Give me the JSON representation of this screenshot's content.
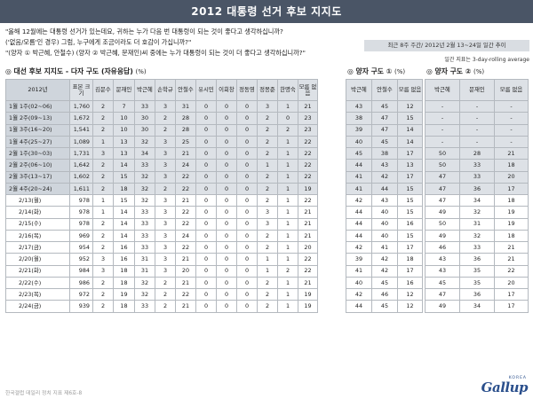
{
  "title": "2012 대통령 선거 후보 지지도",
  "questions": [
    "\"올해 12월에는 대통령 선거가 있는데요, 귀하는 누가 다음 번 대통령이 되는 것이 좋다고 생각하십니까?",
    "('없음/모름'인 경우) 그럼, 누구에게 조금이라도 더 호감이 가십니까?\"",
    "\"(양자 ① 박근혜, 안철수) (양자 ② 박근혜, 문재인)씨 중에는 누가 대통령이 되는 것이 더 좋다고 생각하십니까?\""
  ],
  "trend_label": "최근 8주 주간/ 2012년 2월 13~24일 일간 추이",
  "trend_note": "일간 지표는 3-day-rolling average",
  "sections": {
    "main": {
      "title": "◎ 대선 후보 지지도 - 다자 구도 (자유응답)",
      "unit": "(%)"
    },
    "two1": {
      "title": "◎ 양자 구도 ①",
      "unit": "(%)"
    },
    "two2": {
      "title": "◎ 양자 구도 ②",
      "unit": "(%)"
    }
  },
  "main_table": {
    "headers": [
      "2012년",
      "표본 크기",
      "김문수",
      "문재인",
      "박근혜",
      "손학규",
      "안철수",
      "유시민",
      "이회창",
      "정동영",
      "정몽준",
      "한명숙",
      "모름 없음"
    ],
    "rows": [
      {
        "label": "1월 1주(02~06)",
        "type": "week",
        "values": [
          "1,760",
          "2",
          "7",
          "33",
          "3",
          "31",
          "0",
          "0",
          "0",
          "3",
          "1",
          "21"
        ]
      },
      {
        "label": "1월 2주(09~13)",
        "type": "week",
        "values": [
          "1,672",
          "2",
          "10",
          "30",
          "2",
          "28",
          "0",
          "0",
          "0",
          "2",
          "0",
          "23"
        ]
      },
      {
        "label": "1월 3주(16~20)",
        "type": "week",
        "values": [
          "1,541",
          "2",
          "10",
          "30",
          "2",
          "28",
          "0",
          "0",
          "0",
          "2",
          "2",
          "23"
        ]
      },
      {
        "label": "1월 4주(25~27)",
        "type": "week",
        "values": [
          "1,089",
          "1",
          "13",
          "32",
          "3",
          "25",
          "0",
          "0",
          "0",
          "2",
          "1",
          "22"
        ]
      },
      {
        "label": "2월 1주(30~03)",
        "type": "week",
        "values": [
          "1,731",
          "3",
          "13",
          "34",
          "3",
          "21",
          "0",
          "0",
          "0",
          "2",
          "1",
          "22"
        ]
      },
      {
        "label": "2월 2주(06~10)",
        "type": "week",
        "values": [
          "1,642",
          "2",
          "14",
          "33",
          "3",
          "24",
          "0",
          "0",
          "0",
          "1",
          "1",
          "22"
        ]
      },
      {
        "label": "2월 3주(13~17)",
        "type": "week",
        "values": [
          "1,602",
          "2",
          "15",
          "32",
          "3",
          "22",
          "0",
          "0",
          "0",
          "2",
          "1",
          "22"
        ]
      },
      {
        "label": "2월 4주(20~24)",
        "type": "week",
        "values": [
          "1,611",
          "2",
          "18",
          "32",
          "2",
          "22",
          "0",
          "0",
          "0",
          "2",
          "1",
          "19"
        ]
      },
      {
        "label": "2/13(월)",
        "type": "day",
        "values": [
          "978",
          "1",
          "15",
          "32",
          "3",
          "21",
          "0",
          "0",
          "0",
          "2",
          "1",
          "22"
        ]
      },
      {
        "label": "2/14(화)",
        "type": "day",
        "values": [
          "978",
          "1",
          "14",
          "33",
          "3",
          "22",
          "0",
          "0",
          "0",
          "3",
          "1",
          "21"
        ]
      },
      {
        "label": "2/15(수)",
        "type": "day",
        "values": [
          "978",
          "2",
          "14",
          "33",
          "3",
          "22",
          "0",
          "0",
          "0",
          "3",
          "1",
          "21"
        ]
      },
      {
        "label": "2/16(목)",
        "type": "day",
        "values": [
          "969",
          "2",
          "14",
          "33",
          "3",
          "24",
          "0",
          "0",
          "0",
          "2",
          "1",
          "21"
        ]
      },
      {
        "label": "2/17(금)",
        "type": "day",
        "values": [
          "954",
          "2",
          "16",
          "33",
          "3",
          "22",
          "0",
          "0",
          "0",
          "2",
          "1",
          "20"
        ]
      },
      {
        "label": "2/20(월)",
        "type": "day",
        "values": [
          "952",
          "3",
          "16",
          "31",
          "3",
          "21",
          "0",
          "0",
          "0",
          "1",
          "1",
          "22"
        ]
      },
      {
        "label": "2/21(화)",
        "type": "day",
        "values": [
          "984",
          "3",
          "18",
          "31",
          "3",
          "20",
          "0",
          "0",
          "0",
          "1",
          "2",
          "22"
        ]
      },
      {
        "label": "2/22(수)",
        "type": "day",
        "values": [
          "986",
          "2",
          "18",
          "32",
          "2",
          "21",
          "0",
          "0",
          "0",
          "2",
          "1",
          "21"
        ]
      },
      {
        "label": "2/23(목)",
        "type": "day",
        "values": [
          "972",
          "2",
          "19",
          "32",
          "2",
          "22",
          "0",
          "0",
          "0",
          "2",
          "1",
          "19"
        ]
      },
      {
        "label": "2/24(금)",
        "type": "day",
        "values": [
          "939",
          "2",
          "18",
          "33",
          "2",
          "21",
          "0",
          "0",
          "0",
          "2",
          "1",
          "19"
        ]
      }
    ]
  },
  "two_way_1": {
    "headers": [
      "박근혜",
      "안철수",
      "모름 없음"
    ],
    "rows": [
      [
        "43",
        "45",
        "12"
      ],
      [
        "38",
        "47",
        "15"
      ],
      [
        "39",
        "47",
        "14"
      ],
      [
        "40",
        "45",
        "14"
      ],
      [
        "45",
        "38",
        "17"
      ],
      [
        "44",
        "43",
        "13"
      ],
      [
        "41",
        "42",
        "17"
      ],
      [
        "41",
        "44",
        "15"
      ],
      [
        "42",
        "43",
        "15"
      ],
      [
        "44",
        "40",
        "15"
      ],
      [
        "44",
        "40",
        "16"
      ],
      [
        "44",
        "40",
        "15"
      ],
      [
        "42",
        "41",
        "17"
      ],
      [
        "39",
        "42",
        "18"
      ],
      [
        "41",
        "42",
        "17"
      ],
      [
        "40",
        "45",
        "16"
      ],
      [
        "42",
        "46",
        "12"
      ],
      [
        "44",
        "45",
        "12"
      ]
    ]
  },
  "two_way_2": {
    "headers": [
      "박근혜",
      "문재인",
      "모름 없음"
    ],
    "rows": [
      [
        "-",
        "-",
        "-"
      ],
      [
        "-",
        "-",
        "-"
      ],
      [
        "-",
        "-",
        "-"
      ],
      [
        "-",
        "-",
        "-"
      ],
      [
        "50",
        "28",
        "21"
      ],
      [
        "50",
        "33",
        "18"
      ],
      [
        "47",
        "33",
        "20"
      ],
      [
        "47",
        "36",
        "17"
      ],
      [
        "47",
        "34",
        "18"
      ],
      [
        "49",
        "32",
        "19"
      ],
      [
        "50",
        "31",
        "19"
      ],
      [
        "49",
        "32",
        "18"
      ],
      [
        "46",
        "33",
        "21"
      ],
      [
        "43",
        "36",
        "21"
      ],
      [
        "43",
        "35",
        "22"
      ],
      [
        "45",
        "35",
        "20"
      ],
      [
        "47",
        "36",
        "17"
      ],
      [
        "49",
        "34",
        "17"
      ]
    ]
  },
  "footer": "한국갤럽 데일리 정치 지표 제6호-8",
  "logo": {
    "text": "Gallup",
    "sup": "KOREA"
  }
}
